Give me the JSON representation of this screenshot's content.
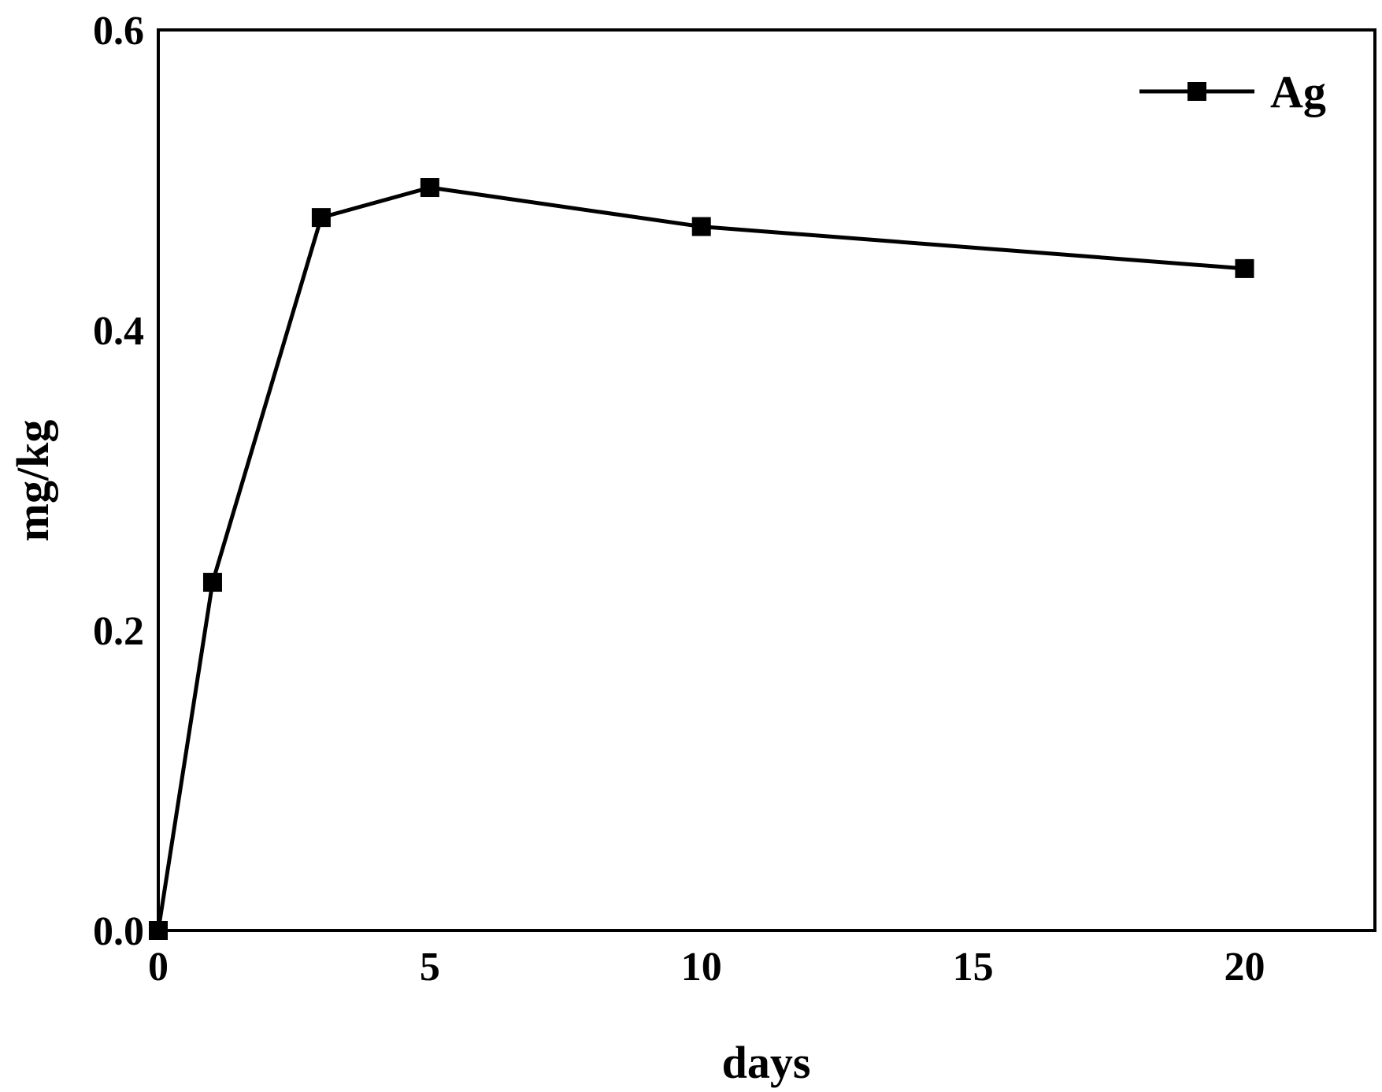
{
  "chart_data": {
    "type": "line",
    "title": "",
    "xlabel": "days",
    "ylabel": "mg/kg",
    "xlim": [
      0,
      22.4
    ],
    "ylim": [
      0,
      0.6
    ],
    "x_ticks": [
      0,
      5,
      10,
      15,
      20
    ],
    "y_ticks": [
      0.0,
      0.2,
      0.4,
      0.6
    ],
    "x_tick_labels": [
      "0",
      "5",
      "10",
      "15",
      "20"
    ],
    "y_tick_labels": [
      "0.0",
      "0.2",
      "0.4",
      "0.6"
    ],
    "grid": false,
    "legend_position": "top-right",
    "series": [
      {
        "name": "Ag",
        "marker": "square",
        "color": "#000000",
        "x": [
          0,
          1,
          3,
          5,
          10,
          20
        ],
        "y": [
          0.0,
          0.232,
          0.475,
          0.495,
          0.469,
          0.441
        ]
      }
    ]
  }
}
